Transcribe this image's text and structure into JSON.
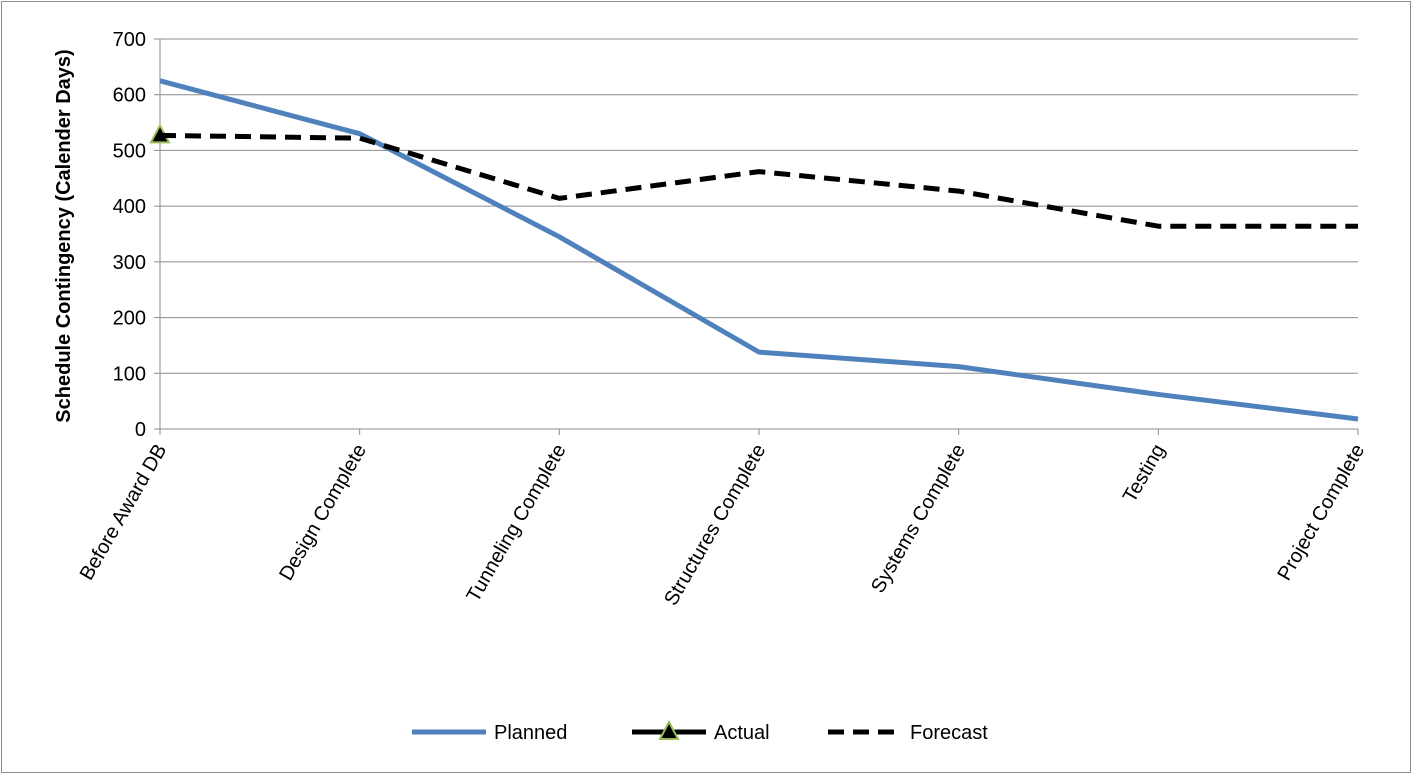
{
  "chart_data": {
    "type": "line",
    "title": "",
    "xlabel": "",
    "ylabel": "Schedule Contingency (Calender Days)",
    "ylim": [
      0,
      700
    ],
    "yticks": [
      0,
      100,
      200,
      300,
      400,
      500,
      600,
      700
    ],
    "grid": true,
    "legend_position": "bottom",
    "categories": [
      "Before Award DB",
      "Design Complete",
      "Tunneling Complete",
      "Structures Complete",
      "Systems Complete",
      "Testing",
      "Project Complete"
    ],
    "series": [
      {
        "name": "Planned",
        "values": [
          625,
          530,
          345,
          138,
          112,
          62,
          18
        ],
        "color": "#4f81bd",
        "style": "solid"
      },
      {
        "name": "Actual",
        "values": [
          527,
          null,
          null,
          null,
          null,
          null,
          null
        ],
        "color": "#000000",
        "style": "solid",
        "marker": "triangle",
        "marker_fill": "#000000",
        "marker_edge": "#9bbb59"
      },
      {
        "name": "Forecast",
        "values": [
          527,
          522,
          414,
          462,
          427,
          364,
          364
        ],
        "color": "#000000",
        "style": "dashed"
      }
    ]
  }
}
